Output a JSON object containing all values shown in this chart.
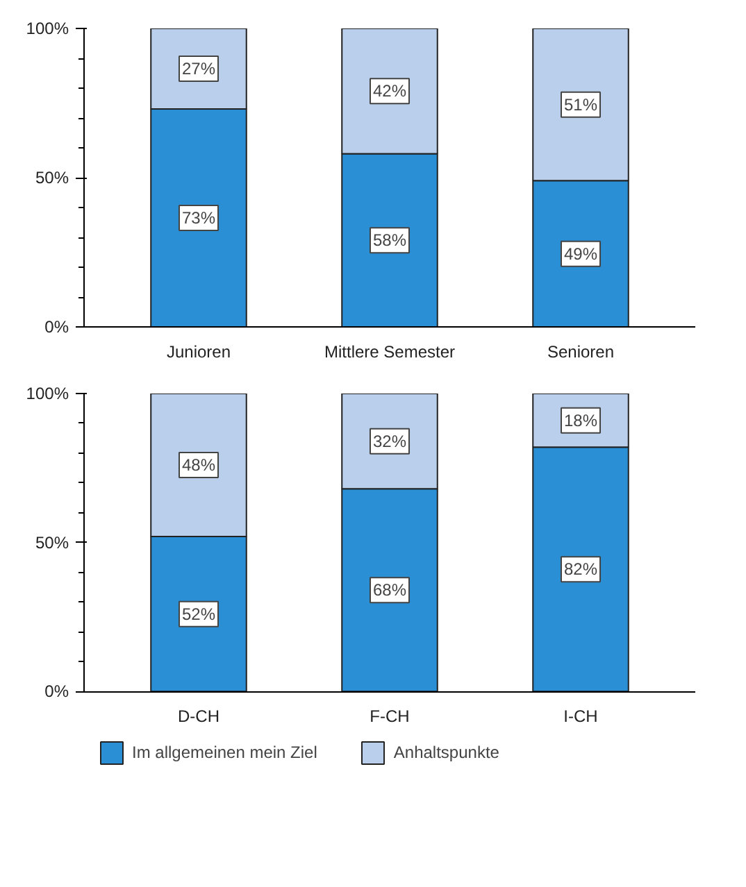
{
  "chart_data": [
    {
      "type": "bar",
      "stacked": true,
      "categories": [
        "Junioren",
        "Mittlere Semester",
        "Senioren"
      ],
      "ylim": [
        0,
        100
      ],
      "yticks": [
        {
          "value": 0,
          "label": "0%"
        },
        {
          "value": 50,
          "label": "50%"
        },
        {
          "value": 100,
          "label": "100%"
        }
      ],
      "grid": false,
      "series": [
        {
          "color": "#2a8fd4",
          "values": [
            73,
            58,
            49
          ],
          "value_labels": [
            "73%",
            "58%",
            "49%"
          ]
        },
        {
          "color": "#b9cfeb",
          "values": [
            27,
            42,
            51
          ],
          "value_labels": [
            "27%",
            "42%",
            "51%"
          ]
        }
      ]
    },
    {
      "type": "bar",
      "stacked": true,
      "categories": [
        "D-CH",
        "F-CH",
        "I-CH"
      ],
      "ylim": [
        0,
        100
      ],
      "yticks": [
        {
          "value": 0,
          "label": "0%"
        },
        {
          "value": 50,
          "label": "50%"
        },
        {
          "value": 100,
          "label": "100%"
        }
      ],
      "grid": false,
      "legend": "bottom",
      "series": [
        {
          "name": "Im allgemeinen mein Ziel",
          "color": "#2a8fd4",
          "values": [
            52,
            68,
            82
          ],
          "value_labels": [
            "52%",
            "68%",
            "82%"
          ]
        },
        {
          "name": "Anhaltspunkte",
          "color": "#b9cfeb",
          "values": [
            48,
            32,
            18
          ],
          "value_labels": [
            "48%",
            "32%",
            "18%"
          ]
        }
      ]
    }
  ]
}
